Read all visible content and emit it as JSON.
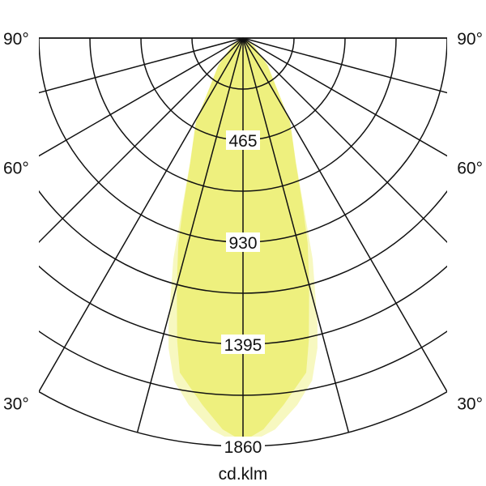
{
  "chart_data": {
    "type": "polar",
    "unit_label": "cd.klm",
    "angle_labels": [
      "90°",
      "60°",
      "30°"
    ],
    "angle_label_values": [
      90,
      60,
      30
    ],
    "spoke_step_deg": 15,
    "angle_range_deg": [
      -90,
      90
    ],
    "radial_max": 1860,
    "radial_ring_step": 232.5,
    "radial_tick_labels": [
      "465",
      "930",
      "1395",
      "1860"
    ],
    "radial_tick_values": [
      465,
      930,
      1395,
      1860
    ],
    "grid": true,
    "symmetric": true,
    "series": [
      {
        "color": "#f7f8c0",
        "points": [
          {
            "angle": 0,
            "cd": 1845
          },
          {
            "angle": 1.2,
            "cd": 1840
          },
          {
            "angle": 4.7,
            "cd": 1789
          },
          {
            "angle": 8.4,
            "cd": 1690
          },
          {
            "angle": 11.4,
            "cd": 1592
          },
          {
            "angle": 13.5,
            "cd": 1453
          },
          {
            "angle": 14.6,
            "cd": 1346
          },
          {
            "angle": 17.5,
            "cd": 1056
          },
          {
            "angle": 20,
            "cd": 800
          },
          {
            "angle": 23,
            "cd": 620
          },
          {
            "angle": 29,
            "cd": 445
          },
          {
            "angle": 42,
            "cd": 170
          },
          {
            "angle": 55,
            "cd": 60
          },
          {
            "angle": 90,
            "cd": 0
          }
        ]
      },
      {
        "color": "#eef07e",
        "points": [
          {
            "angle": 0,
            "cd": 1838
          },
          {
            "angle": 3.0,
            "cd": 1785
          },
          {
            "angle": 6.3,
            "cd": 1682
          },
          {
            "angle": 10.7,
            "cd": 1551
          },
          {
            "angle": 12.3,
            "cd": 1409
          },
          {
            "angle": 15.1,
            "cd": 1158
          },
          {
            "angle": 17.5,
            "cd": 979
          },
          {
            "angle": 19.8,
            "cd": 796
          },
          {
            "angle": 23.0,
            "cd": 614
          },
          {
            "angle": 29.4,
            "cd": 437
          },
          {
            "angle": 42.3,
            "cd": 165
          },
          {
            "angle": 55,
            "cd": 60
          },
          {
            "angle": 90,
            "cd": 0
          }
        ]
      }
    ]
  }
}
